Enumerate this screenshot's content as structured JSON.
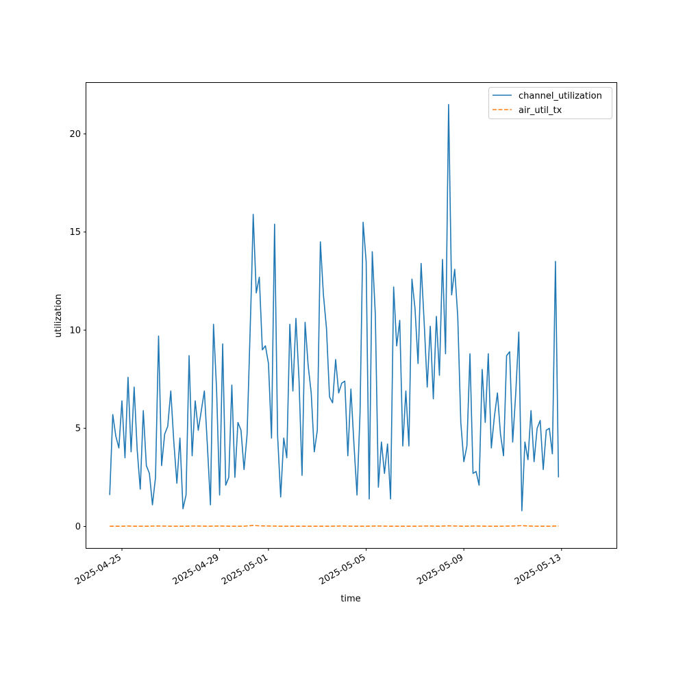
{
  "chart_data": {
    "type": "line",
    "title": "",
    "xlabel": "time",
    "ylabel": "utilization",
    "x_type": "datetime",
    "xlim": [
      "2025-04-23T13:00",
      "2025-05-15T06:00"
    ],
    "ylim": [
      -1.1,
      22.6
    ],
    "x_ticks": [
      "2025-04-25",
      "2025-04-29",
      "2025-05-01",
      "2025-05-05",
      "2025-05-09",
      "2025-05-13"
    ],
    "y_ticks": [
      0,
      5,
      10,
      15,
      20
    ],
    "grid": false,
    "legend_position": "upper right",
    "series": [
      {
        "name": "channel_utilization",
        "color": "#1f77b4",
        "line_style": "solid",
        "points": [
          [
            "2025-04-24T12:00",
            1.6
          ],
          [
            "2025-04-24T15:00",
            5.7
          ],
          [
            "2025-04-24T18:00",
            4.6
          ],
          [
            "2025-04-24T21:00",
            4.0
          ],
          [
            "2025-04-25T00:00",
            6.4
          ],
          [
            "2025-04-25T03:00",
            3.5
          ],
          [
            "2025-04-25T06:00",
            7.6
          ],
          [
            "2025-04-25T09:00",
            3.8
          ],
          [
            "2025-04-25T12:00",
            7.1
          ],
          [
            "2025-04-25T15:00",
            3.9
          ],
          [
            "2025-04-25T18:00",
            1.9
          ],
          [
            "2025-04-25T21:00",
            5.9
          ],
          [
            "2025-04-26T00:00",
            3.1
          ],
          [
            "2025-04-26T03:00",
            2.7
          ],
          [
            "2025-04-26T06:00",
            1.1
          ],
          [
            "2025-04-26T09:00",
            2.5
          ],
          [
            "2025-04-26T12:00",
            9.7
          ],
          [
            "2025-04-26T15:00",
            3.1
          ],
          [
            "2025-04-26T18:00",
            4.7
          ],
          [
            "2025-04-26T21:00",
            5.1
          ],
          [
            "2025-04-27T00:00",
            6.9
          ],
          [
            "2025-04-27T03:00",
            4.3
          ],
          [
            "2025-04-27T06:00",
            2.2
          ],
          [
            "2025-04-27T09:00",
            4.5
          ],
          [
            "2025-04-27T12:00",
            0.9
          ],
          [
            "2025-04-27T15:00",
            1.6
          ],
          [
            "2025-04-27T18:00",
            8.7
          ],
          [
            "2025-04-27T21:00",
            3.6
          ],
          [
            "2025-04-28T00:00",
            6.4
          ],
          [
            "2025-04-28T03:00",
            4.9
          ],
          [
            "2025-04-28T06:00",
            5.9
          ],
          [
            "2025-04-28T09:00",
            6.9
          ],
          [
            "2025-04-28T12:00",
            4.1
          ],
          [
            "2025-04-28T15:00",
            1.1
          ],
          [
            "2025-04-28T18:00",
            10.3
          ],
          [
            "2025-04-28T21:00",
            7.0
          ],
          [
            "2025-04-29T00:00",
            1.6
          ],
          [
            "2025-04-29T03:00",
            9.3
          ],
          [
            "2025-04-29T06:00",
            2.1
          ],
          [
            "2025-04-29T09:00",
            2.5
          ],
          [
            "2025-04-29T12:00",
            7.2
          ],
          [
            "2025-04-29T15:00",
            2.5
          ],
          [
            "2025-04-29T18:00",
            5.3
          ],
          [
            "2025-04-29T21:00",
            4.9
          ],
          [
            "2025-04-30T00:00",
            2.9
          ],
          [
            "2025-04-30T03:00",
            4.7
          ],
          [
            "2025-04-30T06:00",
            10.0
          ],
          [
            "2025-04-30T07:30",
            12.7
          ],
          [
            "2025-04-30T09:00",
            15.9
          ],
          [
            "2025-04-30T12:00",
            11.9
          ],
          [
            "2025-04-30T15:00",
            12.7
          ],
          [
            "2025-04-30T18:00",
            9.0
          ],
          [
            "2025-04-30T21:00",
            9.2
          ],
          [
            "2025-05-01T00:00",
            8.3
          ],
          [
            "2025-05-01T03:00",
            4.5
          ],
          [
            "2025-05-01T06:00",
            15.4
          ],
          [
            "2025-05-01T09:00",
            4.6
          ],
          [
            "2025-05-01T12:00",
            1.5
          ],
          [
            "2025-05-01T15:00",
            4.5
          ],
          [
            "2025-05-01T18:00",
            3.5
          ],
          [
            "2025-05-01T21:00",
            10.3
          ],
          [
            "2025-05-02T00:00",
            6.9
          ],
          [
            "2025-05-02T03:00",
            10.6
          ],
          [
            "2025-05-02T06:00",
            7.5
          ],
          [
            "2025-05-02T09:00",
            2.6
          ],
          [
            "2025-05-02T12:00",
            10.4
          ],
          [
            "2025-05-02T15:00",
            8.2
          ],
          [
            "2025-05-02T18:00",
            6.8
          ],
          [
            "2025-05-02T21:00",
            3.8
          ],
          [
            "2025-05-03T00:00",
            4.9
          ],
          [
            "2025-05-03T03:00",
            14.5
          ],
          [
            "2025-05-03T06:00",
            11.8
          ],
          [
            "2025-05-03T09:00",
            10.1
          ],
          [
            "2025-05-03T12:00",
            6.6
          ],
          [
            "2025-05-03T15:00",
            6.3
          ],
          [
            "2025-05-03T18:00",
            8.5
          ],
          [
            "2025-05-03T21:00",
            6.8
          ],
          [
            "2025-05-04T00:00",
            7.3
          ],
          [
            "2025-05-04T03:00",
            7.4
          ],
          [
            "2025-05-04T06:00",
            3.6
          ],
          [
            "2025-05-04T09:00",
            7.0
          ],
          [
            "2025-05-04T12:00",
            4.2
          ],
          [
            "2025-05-04T15:00",
            1.6
          ],
          [
            "2025-05-04T18:00",
            5.8
          ],
          [
            "2025-05-04T21:00",
            15.5
          ],
          [
            "2025-05-05T00:00",
            13.5
          ],
          [
            "2025-05-05T03:00",
            1.4
          ],
          [
            "2025-05-05T06:00",
            14.0
          ],
          [
            "2025-05-05T09:00",
            10.8
          ],
          [
            "2025-05-05T12:00",
            2.0
          ],
          [
            "2025-05-05T15:00",
            4.3
          ],
          [
            "2025-05-05T18:00",
            2.7
          ],
          [
            "2025-05-05T21:00",
            4.2
          ],
          [
            "2025-05-06T00:00",
            1.4
          ],
          [
            "2025-05-06T03:00",
            12.2
          ],
          [
            "2025-05-06T06:00",
            9.2
          ],
          [
            "2025-05-06T09:00",
            10.5
          ],
          [
            "2025-05-06T12:00",
            4.1
          ],
          [
            "2025-05-06T15:00",
            6.9
          ],
          [
            "2025-05-06T18:00",
            4.1
          ],
          [
            "2025-05-06T21:00",
            12.6
          ],
          [
            "2025-05-07T00:00",
            11.1
          ],
          [
            "2025-05-07T03:00",
            8.3
          ],
          [
            "2025-05-07T06:00",
            13.4
          ],
          [
            "2025-05-07T09:00",
            10.4
          ],
          [
            "2025-05-07T12:00",
            7.1
          ],
          [
            "2025-05-07T15:00",
            10.2
          ],
          [
            "2025-05-07T18:00",
            6.5
          ],
          [
            "2025-05-07T21:00",
            10.7
          ],
          [
            "2025-05-08T00:00",
            7.7
          ],
          [
            "2025-05-08T03:00",
            13.6
          ],
          [
            "2025-05-08T06:00",
            8.8
          ],
          [
            "2025-05-08T09:00",
            21.5
          ],
          [
            "2025-05-08T12:00",
            11.8
          ],
          [
            "2025-05-08T15:00",
            13.1
          ],
          [
            "2025-05-08T18:00",
            10.7
          ],
          [
            "2025-05-08T21:00",
            5.3
          ],
          [
            "2025-05-09T00:00",
            3.3
          ],
          [
            "2025-05-09T03:00",
            4.1
          ],
          [
            "2025-05-09T06:00",
            8.8
          ],
          [
            "2025-05-09T09:00",
            2.7
          ],
          [
            "2025-05-09T12:00",
            2.8
          ],
          [
            "2025-05-09T15:00",
            2.1
          ],
          [
            "2025-05-09T18:00",
            8.0
          ],
          [
            "2025-05-09T21:00",
            5.3
          ],
          [
            "2025-05-10T00:00",
            8.8
          ],
          [
            "2025-05-10T03:00",
            4.0
          ],
          [
            "2025-05-10T06:00",
            5.6
          ],
          [
            "2025-05-10T09:00",
            6.8
          ],
          [
            "2025-05-10T12:00",
            4.7
          ],
          [
            "2025-05-10T15:00",
            3.6
          ],
          [
            "2025-05-10T18:00",
            8.7
          ],
          [
            "2025-05-10T21:00",
            8.9
          ],
          [
            "2025-05-11T00:00",
            4.3
          ],
          [
            "2025-05-11T03:00",
            6.8
          ],
          [
            "2025-05-11T06:00",
            9.9
          ],
          [
            "2025-05-11T09:00",
            0.8
          ],
          [
            "2025-05-11T12:00",
            4.3
          ],
          [
            "2025-05-11T15:00",
            3.4
          ],
          [
            "2025-05-11T18:00",
            5.9
          ],
          [
            "2025-05-11T21:00",
            3.3
          ],
          [
            "2025-05-12T00:00",
            5.0
          ],
          [
            "2025-05-12T03:00",
            5.4
          ],
          [
            "2025-05-12T06:00",
            2.9
          ],
          [
            "2025-05-12T09:00",
            4.9
          ],
          [
            "2025-05-12T12:00",
            5.0
          ],
          [
            "2025-05-12T15:00",
            3.7
          ],
          [
            "2025-05-12T18:00",
            13.5
          ],
          [
            "2025-05-12T21:00",
            2.5
          ]
        ]
      },
      {
        "name": "air_util_tx",
        "color": "#ff7f0e",
        "line_style": "dashed",
        "points": [
          [
            "2025-04-24T12:00",
            0.01
          ],
          [
            "2025-04-25T00:00",
            0.01
          ],
          [
            "2025-04-25T06:00",
            0.02
          ],
          [
            "2025-04-25T12:00",
            0.01
          ],
          [
            "2025-04-26T00:00",
            0.01
          ],
          [
            "2025-04-26T12:00",
            0.02
          ],
          [
            "2025-04-27T00:00",
            0.01
          ],
          [
            "2025-04-27T12:00",
            0.01
          ],
          [
            "2025-04-28T00:00",
            0.02
          ],
          [
            "2025-04-28T12:00",
            0.01
          ],
          [
            "2025-04-29T00:00",
            0.02
          ],
          [
            "2025-04-29T12:00",
            0.01
          ],
          [
            "2025-04-30T00:00",
            0.01
          ],
          [
            "2025-04-30T09:00",
            0.05
          ],
          [
            "2025-04-30T15:00",
            0.03
          ],
          [
            "2025-05-01T00:00",
            0.02
          ],
          [
            "2025-05-01T12:00",
            0.01
          ],
          [
            "2025-05-02T00:00",
            0.01
          ],
          [
            "2025-05-02T12:00",
            0.01
          ],
          [
            "2025-05-03T00:00",
            0.01
          ],
          [
            "2025-05-03T12:00",
            0.01
          ],
          [
            "2025-05-04T00:00",
            0.02
          ],
          [
            "2025-05-04T12:00",
            0.01
          ],
          [
            "2025-05-05T00:00",
            0.01
          ],
          [
            "2025-05-05T12:00",
            0.02
          ],
          [
            "2025-05-06T00:00",
            0.01
          ],
          [
            "2025-05-06T12:00",
            0.01
          ],
          [
            "2025-05-07T00:00",
            0.01
          ],
          [
            "2025-05-07T12:00",
            0.02
          ],
          [
            "2025-05-08T00:00",
            0.01
          ],
          [
            "2025-05-08T09:00",
            0.03
          ],
          [
            "2025-05-08T15:00",
            0.02
          ],
          [
            "2025-05-09T00:00",
            0.01
          ],
          [
            "2025-05-09T12:00",
            0.02
          ],
          [
            "2025-05-10T00:00",
            0.01
          ],
          [
            "2025-05-10T12:00",
            0.01
          ],
          [
            "2025-05-11T00:00",
            0.02
          ],
          [
            "2025-05-11T09:00",
            0.04
          ],
          [
            "2025-05-11T15:00",
            0.02
          ],
          [
            "2025-05-12T00:00",
            0.01
          ],
          [
            "2025-05-12T12:00",
            0.01
          ],
          [
            "2025-05-12T21:00",
            0.02
          ]
        ]
      }
    ]
  }
}
